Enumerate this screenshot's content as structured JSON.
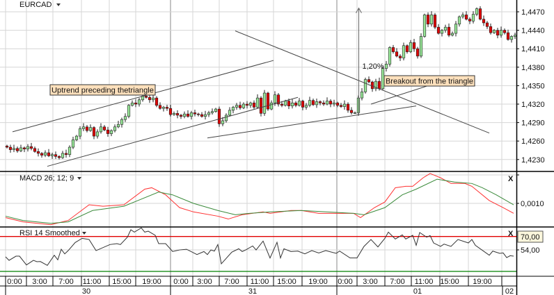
{
  "header": {
    "symbol": "EURCAD"
  },
  "colors": {
    "up": "#98e598",
    "down": "#e00000",
    "macd": "#ff3030",
    "signal": "#3a8a3a",
    "rsi": "#333333",
    "rsi_upper": "#e00000",
    "rsi_lower": "#008000",
    "annotation_bg": "#fde0bc"
  },
  "chart_data": [
    {
      "type": "candlestick",
      "title": "EURCAD",
      "ylim": [
        1.4212,
        1.449
      ],
      "y_ticks": [
        "1,4470",
        "1,4440",
        "1,4410",
        "1,4380",
        "1,4350",
        "1,4320",
        "1,4290",
        "1,4260",
        "1,4230"
      ],
      "y_tick_values": [
        1.447,
        1.444,
        1.441,
        1.438,
        1.435,
        1.432,
        1.429,
        1.426,
        1.423
      ],
      "closes": [
        1.425,
        1.4246,
        1.4248,
        1.4244,
        1.4249,
        1.4247,
        1.4251,
        1.4248,
        1.4243,
        1.424,
        1.4237,
        1.4241,
        1.4236,
        1.4238,
        1.4235,
        1.4233,
        1.424,
        1.4238,
        1.425,
        1.4262,
        1.4268,
        1.428,
        1.4283,
        1.4277,
        1.4282,
        1.4268,
        1.4275,
        1.4283,
        1.4278,
        1.4272,
        1.4277,
        1.4283,
        1.4287,
        1.4295,
        1.43,
        1.4318,
        1.4322,
        1.432,
        1.4327,
        1.4333,
        1.4331,
        1.4327,
        1.433,
        1.4318,
        1.4313,
        1.4315,
        1.4313,
        1.4303,
        1.4305,
        1.4302,
        1.43,
        1.4304,
        1.43,
        1.4306,
        1.4304,
        1.4303,
        1.43,
        1.4303,
        1.4306,
        1.4308,
        1.4312,
        1.4288,
        1.4293,
        1.4302,
        1.431,
        1.4315,
        1.4318,
        1.4314,
        1.432,
        1.4318,
        1.4322,
        1.4315,
        1.433,
        1.4305,
        1.4338,
        1.4312,
        1.4322,
        1.4335,
        1.432,
        1.4318,
        1.4325,
        1.4317,
        1.4322,
        1.4318,
        1.4325,
        1.4315,
        1.4318,
        1.4326,
        1.4319,
        1.4324,
        1.4322,
        1.432,
        1.4325,
        1.432,
        1.4322,
        1.4318,
        1.4316,
        1.432,
        1.431,
        1.4306,
        1.4306,
        1.433,
        1.434,
        1.436,
        1.4356,
        1.4345,
        1.4357,
        1.4345,
        1.4378,
        1.4385,
        1.4412,
        1.4405,
        1.4398,
        1.4395,
        1.4415,
        1.4405,
        1.442,
        1.441,
        1.4398,
        1.443,
        1.4465,
        1.445,
        1.4465,
        1.4445,
        1.4435,
        1.444,
        1.4445,
        1.4432,
        1.4435,
        1.445,
        1.4462,
        1.4465,
        1.4458,
        1.4455,
        1.4466,
        1.4475,
        1.4458,
        1.4452,
        1.4446,
        1.4436,
        1.444,
        1.4432,
        1.444,
        1.4436,
        1.4425,
        1.443,
        1.4432
      ],
      "trendlines": [
        {
          "name": "uptrend-upper",
          "from": [
            "30 01:00",
            1.4275
          ],
          "to": [
            "31 14:30",
            1.4391
          ]
        },
        {
          "name": "uptrend-lower",
          "from": [
            "30 06:00",
            1.4219
          ],
          "to": [
            "31 18:00",
            1.4331
          ]
        },
        {
          "name": "triangle-upper",
          "from": [
            "31 09:00",
            1.4439
          ],
          "to": [
            "01 21:30",
            1.4273
          ]
        },
        {
          "name": "triangle-lower",
          "from": [
            "31 05:00",
            1.4265
          ],
          "to": [
            "01 11:00",
            1.4317
          ]
        },
        {
          "name": "breakout-pointer",
          "from": [
            "01 04:30",
            1.432
          ],
          "to": [
            "01 13:00",
            1.4351
          ]
        }
      ],
      "measure_arrow": {
        "at": "01 02:45",
        "from": 1.4303,
        "to": 1.4476,
        "label": "1,20%"
      },
      "annotations": [
        "Uptrend preceding thetriangle",
        "Breakout from the triangle"
      ]
    },
    {
      "type": "line",
      "title": "MACD 26; 12; 9",
      "y_ticks": [
        "0,0010"
      ],
      "series": [
        {
          "values": [
            [
              "30 00:00",
              0.0
            ],
            [
              "30 02:30",
              -0.0003
            ],
            [
              "30 06:30",
              -0.0005
            ],
            [
              "30 09:00",
              -0.0002
            ],
            [
              "30 12:00",
              0.0009
            ],
            [
              "30 14:00",
              0.0008
            ],
            [
              "30 17:00",
              0.0009
            ],
            [
              "30 20:00",
              0.002
            ],
            [
              "30 21:00",
              0.0021
            ],
            [
              "30 23:00",
              0.0016
            ],
            [
              "31 01:00",
              0.0007
            ],
            [
              "31 03:00",
              0.0004
            ],
            [
              "31 06:30",
              0.0001
            ],
            [
              "31 08:00",
              -0.0001
            ],
            [
              "31 10:00",
              0.0002
            ],
            [
              "31 13:00",
              0.0004
            ],
            [
              "31 14:00",
              0.0003
            ],
            [
              "31 17:00",
              0.0005
            ],
            [
              "31 18:30",
              0.0005
            ],
            [
              "31 21:00",
              0.0003
            ],
            [
              "01 02:00",
              0.0003
            ],
            [
              "01 03:00",
              0.0
            ],
            [
              "01 05:00",
              0.0007
            ],
            [
              "01 06:30",
              0.0011
            ],
            [
              "01 08:00",
              0.0021
            ],
            [
              "01 09:30",
              0.0022
            ],
            [
              "01 10:30",
              0.0022
            ],
            [
              "01 12:00",
              0.0028
            ],
            [
              "01 13:00",
              0.0031
            ],
            [
              "01 14:30",
              0.0028
            ],
            [
              "01 16:00",
              0.0024
            ],
            [
              "01 18:00",
              0.0024
            ],
            [
              "01 19:00",
              0.0022
            ],
            [
              "01 21:30",
              0.0012
            ],
            [
              "01 23:30",
              0.0007
            ],
            [
              "02 01:00",
              0.0003
            ]
          ]
        },
        {
          "values": [
            [
              "30 00:00",
              0.0001
            ],
            [
              "30 02:30",
              -0.0002
            ],
            [
              "30 06:30",
              -0.0004
            ],
            [
              "30 09:00",
              -0.0003
            ],
            [
              "30 12:30",
              0.0005
            ],
            [
              "30 17:00",
              0.0008
            ],
            [
              "30 19:00",
              0.0012
            ],
            [
              "30 22:00",
              0.0018
            ],
            [
              "31 00:00",
              0.0016
            ],
            [
              "31 03:00",
              0.001
            ],
            [
              "31 06:30",
              0.0005
            ],
            [
              "31 09:00",
              0.0002
            ],
            [
              "31 11:00",
              0.0003
            ],
            [
              "31 14:00",
              0.0004
            ],
            [
              "31 18:30",
              0.0005
            ],
            [
              "01 02:00",
              0.0003
            ],
            [
              "01 03:30",
              0.0002
            ],
            [
              "01 06:30",
              0.0007
            ],
            [
              "01 09:00",
              0.0016
            ],
            [
              "01 11:00",
              0.002
            ],
            [
              "01 14:00",
              0.0027
            ],
            [
              "01 16:30",
              0.0025
            ],
            [
              "01 19:00",
              0.0024
            ],
            [
              "01 20:30",
              0.0021
            ],
            [
              "01 22:30",
              0.0016
            ],
            [
              "02 01:00",
              0.0009
            ]
          ]
        }
      ]
    },
    {
      "type": "line",
      "title": "RSI 14 Smoothed",
      "levels": [
        70,
        30
      ],
      "y_ticks": [
        "70,00",
        "54,00"
      ],
      "series": [
        {
          "values": [
            [
              "30 00:00",
              45.8
            ],
            [
              "30 00:30",
              41.6
            ],
            [
              "30 01:30",
              46.6
            ],
            [
              "30 02:00",
              46.6
            ],
            [
              "30 03:00",
              36.1
            ],
            [
              "30 04:00",
              41.6
            ],
            [
              "30 04:30",
              40.0
            ],
            [
              "30 05:00",
              40.2
            ],
            [
              "30 06:00",
              35.6
            ],
            [
              "30 07:00",
              47.7
            ],
            [
              "30 07:30",
              42.2
            ],
            [
              "30 08:00",
              54.8
            ],
            [
              "30 08:30",
              49.3
            ],
            [
              "30 09:00",
              53.2
            ],
            [
              "30 10:00",
              62.8
            ],
            [
              "30 11:00",
              67.8
            ],
            [
              "30 12:00",
              66.4
            ],
            [
              "30 13:00",
              53.2
            ],
            [
              "30 15:00",
              60.4
            ],
            [
              "30 16:00",
              61.5
            ],
            [
              "30 16:30",
              60.4
            ],
            [
              "30 17:30",
              69.2
            ],
            [
              "30 18:00",
              78.0
            ],
            [
              "30 18:30",
              75.2
            ],
            [
              "30 19:30",
              80.2
            ],
            [
              "30 20:00",
              75.2
            ],
            [
              "30 20:30",
              76.3
            ],
            [
              "30 21:30",
              71.4
            ],
            [
              "30 22:00",
              61.5
            ],
            [
              "30 23:00",
              61.5
            ],
            [
              "31 00:00",
              52.1
            ],
            [
              "31 01:00",
              54.0
            ],
            [
              "31 02:00",
              54.8
            ],
            [
              "31 03:30",
              48.5
            ],
            [
              "31 04:30",
              52.1
            ],
            [
              "31 05:00",
              48.5
            ],
            [
              "31 05:30",
              54.0
            ],
            [
              "31 06:00",
              52.6
            ],
            [
              "31 06:30",
              60.4
            ],
            [
              "31 07:00",
              37.5
            ],
            [
              "31 08:30",
              51.3
            ],
            [
              "31 09:30",
              55.4
            ],
            [
              "31 10:00",
              52.1
            ],
            [
              "31 10:30",
              54.0
            ],
            [
              "31 11:30",
              58.7
            ],
            [
              "31 12:00",
              54.0
            ],
            [
              "31 13:00",
              64.5
            ],
            [
              "31 14:00",
              44.4
            ],
            [
              "31 15:00",
              63.1
            ],
            [
              "31 15:30",
              44.4
            ],
            [
              "31 16:00",
              55.4
            ],
            [
              "31 17:00",
              52.1
            ],
            [
              "31 18:00",
              52.6
            ],
            [
              "31 19:00",
              49.3
            ],
            [
              "31 20:00",
              53.2
            ],
            [
              "31 21:00",
              50.4
            ],
            [
              "31 22:00",
              53.2
            ],
            [
              "31 23:30",
              49.9
            ],
            [
              "01 00:00",
              52.6
            ],
            [
              "01 01:30",
              44.4
            ],
            [
              "01 02:30",
              44.4
            ],
            [
              "01 03:30",
              58.2
            ],
            [
              "01 04:30",
              66.4
            ],
            [
              "01 05:30",
              57.6
            ],
            [
              "01 06:30",
              67.8
            ],
            [
              "01 07:00",
              75.2
            ],
            [
              "01 08:00",
              67.0
            ],
            [
              "01 09:00",
              71.9
            ],
            [
              "01 09:30",
              67.0
            ],
            [
              "01 10:30",
              71.4
            ],
            [
              "01 11:00",
              59.5
            ],
            [
              "01 11:30",
              74.7
            ],
            [
              "01 12:30",
              69.2
            ],
            [
              "01 13:00",
              71.1
            ],
            [
              "01 13:30",
              62.3
            ],
            [
              "01 14:30",
              58.2
            ],
            [
              "01 15:00",
              60.9
            ],
            [
              "01 16:00",
              58.2
            ],
            [
              "01 17:00",
              66.4
            ],
            [
              "01 18:30",
              62.3
            ],
            [
              "01 19:00",
              66.4
            ],
            [
              "01 19:30",
              59.5
            ],
            [
              "01 21:30",
              47.7
            ],
            [
              "01 22:00",
              52.6
            ],
            [
              "01 23:00",
              49.9
            ],
            [
              "01 23:30",
              50.4
            ],
            [
              "02 00:00",
              44.9
            ],
            [
              "02 00:30",
              47.1
            ],
            [
              "02 01:00",
              46.6
            ]
          ]
        }
      ]
    }
  ],
  "time_axis": {
    "hours": [
      "0:00",
      "3:00",
      "7:00",
      "11:00",
      "15:00",
      "19:00",
      "0:00",
      "3:00",
      "7:00",
      "11:00",
      "15:00",
      "19:00",
      "0:00",
      "3:00",
      "7:00",
      "11:00",
      "15:00",
      "19:00"
    ],
    "days": [
      "30",
      "31",
      "01",
      "02"
    ]
  },
  "controls": {
    "close_glyph": "X"
  }
}
